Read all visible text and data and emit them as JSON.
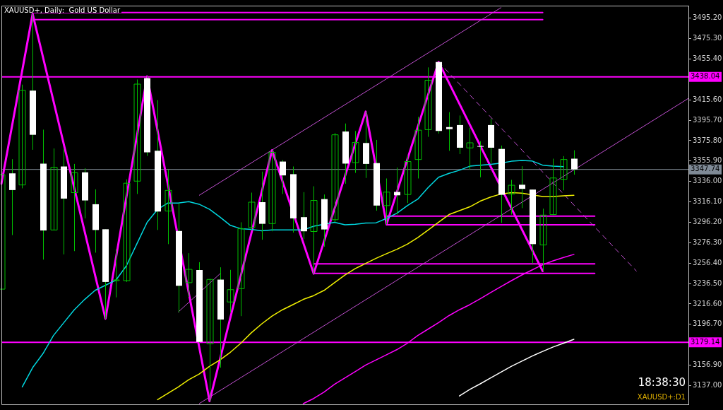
{
  "chart_data": {
    "type": "candlestick",
    "title": "XAUUSD+, Daily:  Gold US Dollar",
    "annotations": [
      "18:38:30",
      "XAUUSD+:D1"
    ],
    "categories": [
      null,
      null,
      null,
      null,
      null,
      null,
      null,
      null,
      null,
      null,
      null,
      null,
      null,
      null,
      null,
      null,
      null,
      null,
      null,
      null,
      null,
      null,
      null,
      null,
      null,
      null,
      null,
      null,
      null,
      null,
      null,
      null,
      null,
      null,
      null,
      null,
      null,
      null,
      null,
      null,
      null,
      null,
      null,
      null,
      null,
      null,
      null,
      null,
      null,
      null,
      null,
      null,
      null,
      null,
      null,
      null,
      null,
      null,
      null,
      null,
      null,
      null,
      null,
      null,
      null,
      null,
      null
    ],
    "ylim": [
      3118.7,
      3507.4
    ],
    "yticks": [
      {
        "value": 3137,
        "label": "3137.00"
      },
      {
        "value": 3156.9,
        "label": "3156.90"
      },
      {
        "value": 3196.7,
        "label": "3196.70"
      },
      {
        "value": 3216.6,
        "label": "3216.60"
      },
      {
        "value": 3236.5,
        "label": "3236.50"
      },
      {
        "value": 3256.4,
        "label": "3256.40"
      },
      {
        "value": 3276.3,
        "label": "3276.30"
      },
      {
        "value": 3296.2,
        "label": "3296.20"
      },
      {
        "value": 3316.1,
        "label": "3316.10"
      },
      {
        "value": 3336,
        "label": "3336.00"
      },
      {
        "value": 3355.9,
        "label": "3355.90"
      },
      {
        "value": 3375.8,
        "label": "3375.80"
      },
      {
        "value": 3395.7,
        "label": "3395.70"
      },
      {
        "value": 3415.6,
        "label": "3415.60"
      },
      {
        "value": 3455.4,
        "label": "3455.40"
      },
      {
        "value": 3475.3,
        "label": "3475.30"
      },
      {
        "value": 3495.2,
        "label": "3495.20"
      }
    ],
    "tick_labels": "y",
    "ref_lines": [
      {
        "axis": "y",
        "value": 3438.04,
        "label": "3438.04",
        "color": "#ff00ff"
      },
      {
        "axis": "y",
        "value": 3347.74,
        "label": "3347.74",
        "color": "#7f8a96"
      },
      {
        "axis": "y",
        "value": 3179.14,
        "label": "3179.14",
        "color": "#ff00ff"
      }
    ],
    "series": [
      {
        "type": "candlestick",
        "color": "#00c000",
        "colors": [
          "#00c000",
          "#ffffff",
          "#00c000",
          "#ffffff",
          "#ffffff",
          "#00c000",
          "#ffffff",
          "#00c000",
          "#ffffff",
          "#ffffff",
          "#ffffff",
          "#00c000",
          "#00c000",
          "#00c000",
          "#ffffff",
          "#ffffff",
          "#00c000",
          "#ffffff",
          "#00c000",
          "#ffffff",
          "#00c000",
          "#ffffff",
          "#00c000",
          "#00c000",
          "#00c000",
          "#ffffff",
          "#00c000",
          "#ffffff",
          "#ffffff",
          "#ffffff",
          "#00c000",
          "#ffffff",
          "#00c000",
          "#ffffff",
          "#00c000",
          "#ffffff",
          "#ffffff",
          "#00c000",
          "#ffffff",
          "#00c000",
          "#00c000",
          "#00c000",
          "#ffffff",
          "#ffffff",
          "#ffffff",
          "#00c000",
          "#ffffff",
          "#ffffff",
          "#ffffff",
          "#00c000",
          "#ffffff",
          "#ffffff",
          "#00c000",
          "#00c000",
          "#00c000",
          "#ffffff",
          null,
          null,
          null,
          null,
          null,
          null,
          null,
          null,
          null,
          null,
          null
        ],
        "ohlc": [
          [
            3231.0,
            3343.9,
            3231.0,
            3342.6
          ],
          [
            3343.9,
            3357.7,
            3283.7,
            3327.6
          ],
          [
            3332.6,
            3430.4,
            3329.3,
            3424.9
          ],
          [
            3424.6,
            3499.4,
            3366.9,
            3381.5
          ],
          [
            3353.4,
            3386.5,
            3259.8,
            3288.2
          ],
          [
            3288.7,
            3368.2,
            3288.7,
            3349.9
          ],
          [
            3350.6,
            3367.7,
            3264.9,
            3319.3
          ],
          [
            3325.1,
            3353.1,
            3268.1,
            3344.4
          ],
          [
            3344.9,
            3348.9,
            3300.0,
            3317.5
          ],
          [
            3313.8,
            3328.3,
            3266.6,
            3288.7
          ],
          [
            3289.4,
            3289.4,
            3202.2,
            3238.0
          ],
          [
            3239.5,
            3269.9,
            3223.0,
            3240.0
          ],
          [
            3239.3,
            3338.1,
            3238.0,
            3334.3
          ],
          [
            3336.3,
            3435.4,
            3323.8,
            3430.9
          ],
          [
            3436.7,
            3438.4,
            3360.9,
            3364.4
          ],
          [
            3365.9,
            3415.3,
            3288.7,
            3306.7
          ],
          [
            3307.2,
            3347.6,
            3274.9,
            3327.3
          ],
          [
            3287.7,
            3315.0,
            3208.4,
            3234.3
          ],
          [
            3237.3,
            3266.1,
            3223.5,
            3250.3
          ],
          [
            3249.6,
            3257.3,
            3178.8,
            3179.6
          ],
          [
            3177.8,
            3241.0,
            3121.9,
            3240.5
          ],
          [
            3240.3,
            3252.3,
            3154.5,
            3201.4
          ],
          [
            3218.5,
            3249.8,
            3208.4,
            3230.5
          ],
          [
            3231.5,
            3296.2,
            3204.7,
            3289.9
          ],
          [
            3291.2,
            3325.1,
            3288.7,
            3315.8
          ],
          [
            3315.8,
            3345.6,
            3279.2,
            3294.7
          ],
          [
            3294.9,
            3366.4,
            3287.4,
            3364.4
          ],
          [
            3355.4,
            3356.9,
            3323.8,
            3341.9
          ],
          [
            3343.1,
            3350.6,
            3286.2,
            3300.0
          ],
          [
            3301.2,
            3325.6,
            3279.9,
            3287.4
          ],
          [
            3287.2,
            3331.3,
            3246.1,
            3317.5
          ],
          [
            3318.8,
            3323.3,
            3272.4,
            3289.2
          ],
          [
            3298.7,
            3383.2,
            3296.2,
            3381.5
          ],
          [
            3384.7,
            3392.5,
            3333.8,
            3353.4
          ],
          [
            3354.4,
            3385.2,
            3344.4,
            3374.0
          ],
          [
            3373.5,
            3404.1,
            3339.4,
            3353.1
          ],
          [
            3353.9,
            3376.5,
            3307.5,
            3312.5
          ],
          [
            3312.5,
            3338.9,
            3294.2,
            3325.6
          ],
          [
            3325.8,
            3349.6,
            3303.7,
            3322.5
          ],
          [
            3323.3,
            3361.4,
            3315.0,
            3355.4
          ],
          [
            3357.4,
            3399.0,
            3338.9,
            3386.0
          ],
          [
            3386.5,
            3447.2,
            3379.5,
            3434.7
          ],
          [
            3452.5,
            3452.5,
            3382.7,
            3385.2
          ],
          [
            3389.0,
            3403.6,
            3365.9,
            3387.0
          ],
          [
            3391.0,
            3400.3,
            3362.7,
            3368.9
          ],
          [
            3368.7,
            3388.3,
            3347.6,
            3373.7
          ],
          [
            3370.5,
            3375.2,
            3340.1,
            3369.9
          ],
          [
            3391.0,
            3397.3,
            3353.9,
            3368.9
          ],
          [
            3367.7,
            3371.0,
            3295.7,
            3323.0
          ],
          [
            3323.8,
            3337.6,
            3303.7,
            3332.3
          ],
          [
            3332.8,
            3350.9,
            3310.0,
            3328.8
          ],
          [
            3328.1,
            3328.1,
            3256.1,
            3274.9
          ],
          [
            3274.1,
            3309.5,
            3248.6,
            3303.2
          ],
          [
            3303.7,
            3358.2,
            3303.2,
            3339.4
          ],
          [
            3338.1,
            3360.7,
            3327.3,
            3357.4
          ],
          [
            3358.2,
            3366.4,
            3342.6,
            3347.74
          ],
          null,
          null,
          null,
          null,
          null,
          null,
          null,
          null,
          null,
          null,
          null
        ]
      },
      {
        "type": "line",
        "color": "#00d8e0",
        "values": [
          null,
          null,
          3135.7,
          3154.5,
          3168.3,
          3185.8,
          3198.4,
          3210.9,
          3221.0,
          3229.8,
          3234.8,
          3239.8,
          3253.6,
          3274.9,
          3296.2,
          3308.8,
          3315.0,
          3315.0,
          3316.3,
          3313.8,
          3308.8,
          3301.2,
          3293.2,
          3289.9,
          3289.2,
          3287.9,
          3288.7,
          3288.7,
          3288.7,
          3288.7,
          3292.4,
          null,
          3296.2,
          3293.7,
          3294.2,
          3295.5,
          3295.7,
          3300.0,
          3305.0,
          3312.5,
          3318.8,
          3330.1,
          3340.1,
          3343.9,
          3346.9,
          3350.9,
          3351.9,
          3352.6,
          3353.9,
          3355.7,
          3356.4,
          3355.9,
          3351.9,
          3350.9,
          3350.4,
          null,
          null,
          null,
          null,
          null,
          null,
          null,
          null,
          null,
          null,
          null,
          null
        ]
      },
      {
        "type": "line",
        "color": "#f0f000",
        "values": [
          null,
          null,
          null,
          null,
          null,
          null,
          null,
          null,
          null,
          null,
          null,
          null,
          null,
          null,
          null,
          3123.2,
          3129.4,
          3135.7,
          3142.7,
          3148.2,
          3155.8,
          3162.0,
          3169.5,
          3178.3,
          3188.4,
          3197.1,
          3204.7,
          3210.9,
          3215.9,
          3221.0,
          3224.7,
          3229.8,
          3237.3,
          3244.8,
          3251.1,
          3256.1,
          3261.1,
          3265.6,
          3269.9,
          3274.9,
          3281.2,
          3288.7,
          3296.2,
          3303.7,
          3307.5,
          3311.3,
          3316.8,
          3320.8,
          3323.8,
          3325.1,
          3324.6,
          null,
          3321.3,
          3321.3,
          3322.0,
          3322.5,
          null,
          null,
          null,
          null,
          null,
          null,
          null,
          null,
          null,
          null,
          null
        ]
      },
      {
        "type": "line",
        "color": "#ff00ff",
        "values": [
          null,
          null,
          null,
          null,
          null,
          null,
          null,
          null,
          null,
          null,
          null,
          null,
          null,
          null,
          null,
          null,
          null,
          null,
          null,
          null,
          null,
          null,
          null,
          null,
          null,
          null,
          null,
          null,
          null,
          3119.4,
          3124.4,
          3130.7,
          3138.2,
          3144.5,
          3150.7,
          3157.0,
          3162.0,
          3167.0,
          3172.1,
          3178.3,
          3185.8,
          3192.1,
          3198.4,
          3205.2,
          3210.9,
          3215.9,
          3221.7,
          3227.7,
          3233.5,
          3239.3,
          3244.8,
          3249.8,
          3254.8,
          3258.6,
          3261.9,
          3264.9,
          null,
          null,
          null,
          null,
          null,
          null,
          null,
          null,
          null,
          null,
          null
        ]
      },
      {
        "type": "line",
        "color": "#ffffff",
        "values": [
          null,
          null,
          null,
          null,
          null,
          null,
          null,
          null,
          null,
          null,
          null,
          null,
          null,
          null,
          null,
          null,
          null,
          null,
          null,
          null,
          null,
          null,
          null,
          null,
          null,
          null,
          null,
          null,
          null,
          null,
          null,
          null,
          null,
          null,
          null,
          null,
          null,
          null,
          null,
          null,
          null,
          null,
          null,
          null,
          3126.9,
          3133.2,
          3138.7,
          3144.5,
          3150.2,
          3155.8,
          3160.8,
          3165.8,
          3170.3,
          3174.6,
          3178.3,
          3182.1,
          null,
          null,
          null,
          null,
          null,
          null,
          null,
          null,
          null,
          null,
          null
        ]
      },
      {
        "type": "line",
        "color": "#ff00ff",
        "values": [
          3333.8,
          null,
          null,
          3499.4,
          null,
          null,
          null,
          null,
          null,
          null,
          3202.2,
          null,
          null,
          null,
          3438.4,
          null,
          null,
          null,
          null,
          null,
          3121.9,
          null,
          null,
          null,
          null,
          null,
          3366.4,
          null,
          null,
          null,
          3246.1,
          null,
          null,
          null,
          null,
          3404.1,
          null,
          3294.2,
          null,
          null,
          null,
          null,
          3452.5,
          null,
          null,
          null,
          null,
          null,
          null,
          null,
          null,
          null,
          3248.6,
          null,
          null,
          null,
          null,
          null,
          null,
          null,
          null,
          null,
          null,
          null,
          null,
          null,
          null
        ]
      },
      {
        "type": "line",
        "color": "#c050d0",
        "values": [
          null,
          null,
          null,
          null,
          null,
          null,
          null,
          null,
          null,
          null,
          null,
          null,
          null,
          null,
          null,
          null,
          null,
          null,
          null,
          3322.5,
          null,
          null,
          null,
          null,
          null,
          null,
          null,
          null,
          null,
          null,
          null,
          null,
          null,
          null,
          null,
          null,
          null,
          null,
          null,
          null,
          null,
          null,
          null,
          null,
          null,
          null,
          null,
          null,
          3505.5,
          null,
          null,
          null,
          null,
          null,
          null,
          null,
          null,
          null,
          null,
          null,
          null,
          null,
          null,
          null,
          null,
          null,
          null
        ]
      },
      {
        "type": "line",
        "color": "#c050d0",
        "values": [
          null,
          null,
          null,
          null,
          null,
          null,
          null,
          null,
          null,
          null,
          null,
          null,
          null,
          null,
          null,
          null,
          null,
          null,
          null,
          3119.4,
          null,
          null,
          null,
          null,
          null,
          null,
          null,
          null,
          null,
          null,
          null,
          null,
          null,
          null,
          null,
          null,
          null,
          null,
          null,
          null,
          null,
          null,
          null,
          null,
          null,
          null,
          null,
          null,
          null,
          null,
          null,
          null,
          null,
          null,
          null,
          null,
          null,
          null,
          null,
          null,
          null,
          null,
          null,
          null,
          null,
          null,
          3417.0
        ]
      },
      {
        "type": "line",
        "color": "#c050d0",
        "values": [
          null,
          null,
          null,
          null,
          null,
          null,
          null,
          null,
          null,
          null,
          null,
          null,
          null,
          null,
          null,
          null,
          null,
          3208.8,
          null,
          null,
          null,
          3246.0,
          null,
          null,
          null,
          null,
          null,
          null,
          null,
          null,
          null,
          null,
          null,
          null,
          null,
          null,
          null,
          null,
          null,
          null,
          null,
          null,
          null,
          null,
          null,
          null,
          null,
          null,
          null,
          null,
          null,
          null,
          null,
          null,
          null,
          null,
          null,
          null,
          null,
          null,
          null,
          null,
          null,
          null,
          null,
          null,
          null
        ]
      },
      {
        "type": "line",
        "color": "#c050d0",
        "line_style": "dashed",
        "values": [
          null,
          null,
          null,
          null,
          null,
          null,
          null,
          null,
          null,
          null,
          null,
          null,
          null,
          null,
          null,
          null,
          null,
          null,
          null,
          null,
          null,
          null,
          null,
          null,
          null,
          null,
          null,
          null,
          null,
          null,
          null,
          null,
          null,
          null,
          null,
          null,
          null,
          null,
          null,
          null,
          null,
          null,
          3452.5,
          null,
          null,
          null,
          null,
          null,
          null,
          null,
          null,
          null,
          null,
          null,
          null,
          null,
          null,
          null,
          null,
          null,
          null,
          3248.7,
          null,
          null,
          null,
          null,
          null
        ]
      },
      {
        "type": "line",
        "color": "#ff00ff",
        "values": [
          null,
          null,
          null,
          3500.6,
          null,
          null,
          null,
          null,
          null,
          null,
          null,
          null,
          null,
          null,
          null,
          null,
          null,
          null,
          null,
          null,
          null,
          null,
          null,
          null,
          null,
          null,
          null,
          null,
          null,
          null,
          null,
          null,
          null,
          null,
          null,
          null,
          null,
          null,
          null,
          null,
          null,
          null,
          null,
          null,
          null,
          null,
          null,
          null,
          null,
          null,
          null,
          null,
          3500.6,
          null,
          null,
          null,
          null,
          null,
          null,
          null,
          null,
          null,
          null,
          null,
          null,
          null,
          null
        ]
      },
      {
        "type": "line",
        "color": "#ff00ff",
        "values": [
          null,
          null,
          null,
          3493.8,
          null,
          null,
          null,
          null,
          null,
          null,
          null,
          null,
          null,
          null,
          null,
          null,
          null,
          null,
          null,
          null,
          null,
          null,
          null,
          null,
          null,
          null,
          null,
          null,
          null,
          null,
          null,
          null,
          null,
          null,
          null,
          null,
          null,
          null,
          null,
          null,
          null,
          null,
          null,
          null,
          null,
          null,
          null,
          null,
          null,
          null,
          null,
          null,
          3493.8,
          null,
          null,
          null,
          null,
          null,
          null,
          null,
          null,
          null,
          null,
          null,
          null,
          null,
          null
        ]
      },
      {
        "type": "line",
        "color": "#ff00ff",
        "values": [
          null,
          null,
          null,
          null,
          null,
          null,
          null,
          null,
          null,
          null,
          null,
          null,
          null,
          null,
          null,
          null,
          null,
          null,
          null,
          null,
          null,
          null,
          null,
          null,
          null,
          null,
          null,
          null,
          null,
          null,
          null,
          null,
          null,
          null,
          null,
          null,
          null,
          3302.2,
          null,
          null,
          null,
          null,
          null,
          null,
          null,
          null,
          null,
          null,
          null,
          null,
          null,
          null,
          null,
          null,
          null,
          null,
          null,
          3302.2,
          null,
          null,
          null,
          null,
          null,
          null,
          null,
          null,
          null
        ]
      },
      {
        "type": "line",
        "color": "#ff00ff",
        "values": [
          null,
          null,
          null,
          null,
          null,
          null,
          null,
          null,
          null,
          null,
          null,
          null,
          null,
          null,
          null,
          null,
          null,
          null,
          null,
          null,
          null,
          null,
          null,
          null,
          null,
          null,
          null,
          null,
          null,
          null,
          null,
          null,
          null,
          null,
          null,
          null,
          null,
          3293.7,
          null,
          null,
          null,
          null,
          null,
          null,
          null,
          null,
          null,
          null,
          null,
          null,
          null,
          null,
          null,
          null,
          null,
          null,
          null,
          3293.7,
          null,
          null,
          null,
          null,
          null,
          null,
          null,
          null,
          null
        ]
      },
      {
        "type": "line",
        "color": "#ff00ff",
        "values": [
          null,
          null,
          null,
          null,
          null,
          null,
          null,
          null,
          null,
          null,
          null,
          null,
          null,
          null,
          null,
          null,
          null,
          null,
          null,
          null,
          null,
          null,
          null,
          null,
          null,
          null,
          null,
          null,
          null,
          null,
          3255.6,
          null,
          null,
          null,
          null,
          null,
          null,
          null,
          null,
          null,
          null,
          null,
          null,
          null,
          null,
          null,
          null,
          null,
          null,
          null,
          null,
          null,
          null,
          null,
          null,
          null,
          null,
          3255.6,
          null,
          null,
          null,
          null,
          null,
          null,
          null,
          null,
          null
        ]
      },
      {
        "type": "line",
        "color": "#ff00ff",
        "values": [
          null,
          null,
          null,
          null,
          null,
          null,
          null,
          null,
          null,
          null,
          null,
          null,
          null,
          null,
          null,
          null,
          null,
          null,
          null,
          null,
          null,
          null,
          null,
          null,
          null,
          null,
          null,
          null,
          null,
          null,
          3246.4,
          null,
          null,
          null,
          null,
          null,
          null,
          null,
          null,
          null,
          null,
          null,
          null,
          null,
          null,
          null,
          null,
          null,
          null,
          null,
          null,
          null,
          null,
          null,
          null,
          null,
          null,
          3246.4,
          null,
          null,
          null,
          null,
          null,
          null,
          null,
          null,
          null
        ]
      }
    ]
  }
}
